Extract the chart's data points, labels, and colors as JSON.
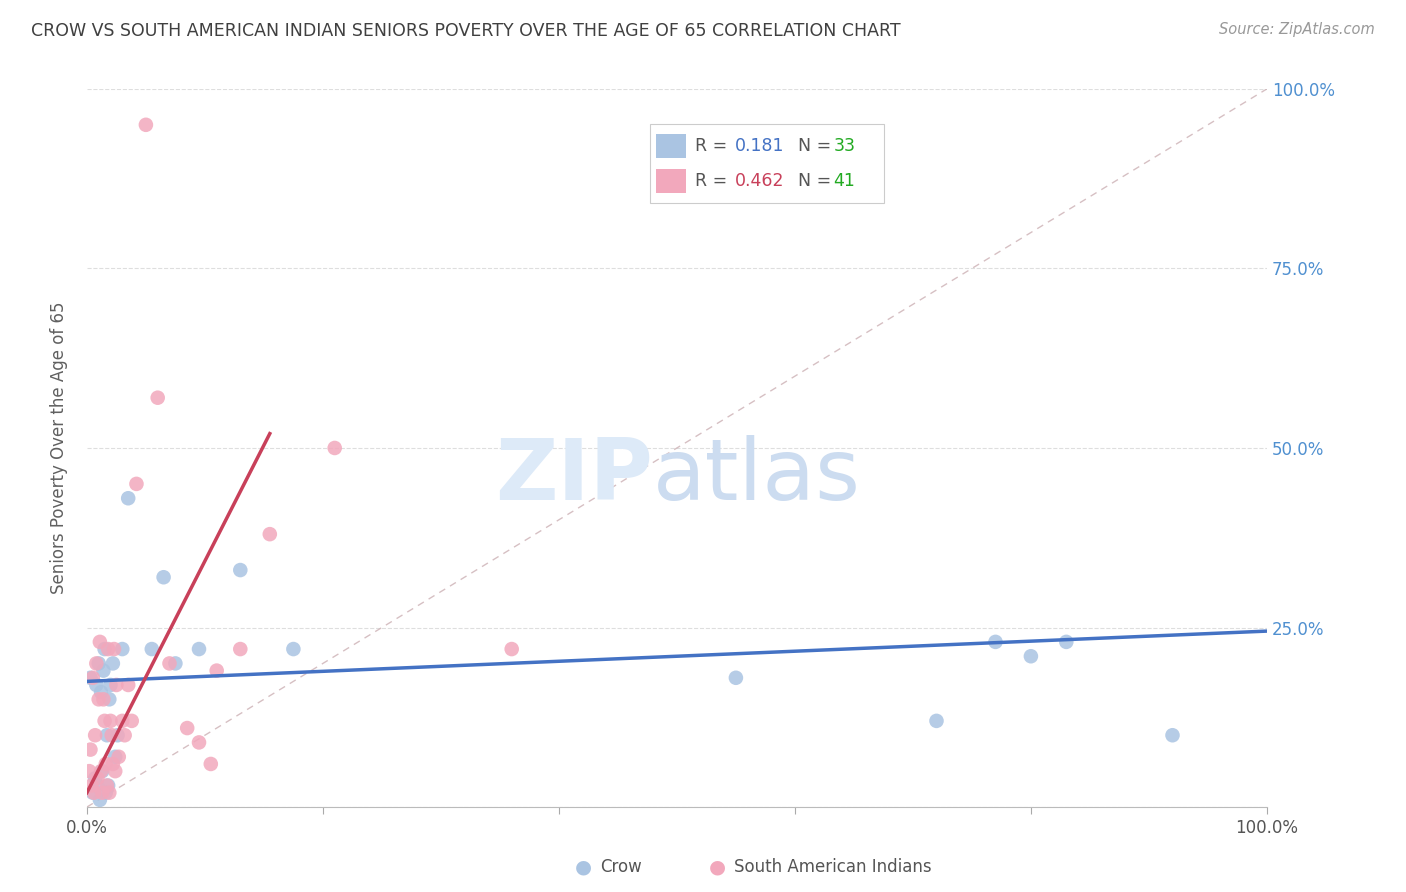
{
  "title": "CROW VS SOUTH AMERICAN INDIAN SENIORS POVERTY OVER THE AGE OF 65 CORRELATION CHART",
  "source": "Source: ZipAtlas.com",
  "ylabel": "Seniors Poverty Over the Age of 65",
  "crow_R": "0.181",
  "crow_N": "33",
  "sa_indian_R": "0.462",
  "sa_indian_N": "41",
  "crow_color": "#aac4e2",
  "sa_indian_color": "#f2a8bc",
  "crow_line_color": "#4472c4",
  "sa_indian_line_color": "#c8405a",
  "diagonal_color": "#ccb0b4",
  "xlim": [
    0,
    1
  ],
  "ylim": [
    0,
    1
  ],
  "crow_scatter_x": [
    0.003,
    0.005,
    0.007,
    0.008,
    0.009,
    0.01,
    0.011,
    0.012,
    0.013,
    0.014,
    0.015,
    0.016,
    0.017,
    0.018,
    0.019,
    0.02,
    0.022,
    0.024,
    0.026,
    0.03,
    0.035,
    0.055,
    0.065,
    0.075,
    0.095,
    0.13,
    0.175,
    0.55,
    0.72,
    0.77,
    0.8,
    0.83,
    0.92
  ],
  "crow_scatter_y": [
    0.18,
    0.02,
    0.04,
    0.17,
    0.03,
    0.2,
    0.01,
    0.16,
    0.05,
    0.19,
    0.22,
    0.02,
    0.1,
    0.03,
    0.15,
    0.17,
    0.2,
    0.07,
    0.1,
    0.22,
    0.43,
    0.22,
    0.32,
    0.2,
    0.22,
    0.33,
    0.22,
    0.18,
    0.12,
    0.23,
    0.21,
    0.23,
    0.1
  ],
  "sa_scatter_x": [
    0.002,
    0.003,
    0.004,
    0.005,
    0.006,
    0.007,
    0.008,
    0.009,
    0.01,
    0.011,
    0.012,
    0.013,
    0.014,
    0.015,
    0.016,
    0.017,
    0.018,
    0.019,
    0.02,
    0.021,
    0.022,
    0.023,
    0.024,
    0.025,
    0.027,
    0.03,
    0.032,
    0.035,
    0.038,
    0.042,
    0.05,
    0.06,
    0.07,
    0.085,
    0.095,
    0.105,
    0.11,
    0.13,
    0.155,
    0.21,
    0.36
  ],
  "sa_scatter_y": [
    0.05,
    0.08,
    0.03,
    0.18,
    0.02,
    0.1,
    0.2,
    0.04,
    0.15,
    0.23,
    0.05,
    0.02,
    0.15,
    0.12,
    0.06,
    0.03,
    0.22,
    0.02,
    0.12,
    0.1,
    0.06,
    0.22,
    0.05,
    0.17,
    0.07,
    0.12,
    0.1,
    0.17,
    0.12,
    0.45,
    0.95,
    0.57,
    0.2,
    0.11,
    0.09,
    0.06,
    0.19,
    0.22,
    0.38,
    0.5,
    0.22
  ],
  "crow_trend_x": [
    0.0,
    1.0
  ],
  "crow_trend_y": [
    0.175,
    0.245
  ],
  "sa_trend_x": [
    0.0,
    0.155
  ],
  "sa_trend_y": [
    0.02,
    0.52
  ],
  "bg_color": "#ffffff",
  "title_color": "#404040",
  "axis_label_color": "#606060",
  "right_tick_color": "#5090d0",
  "grid_color": "#dedede",
  "N_color": "#22aa22",
  "R_blue_color": "#4472c4",
  "R_pink_color": "#c8405a"
}
